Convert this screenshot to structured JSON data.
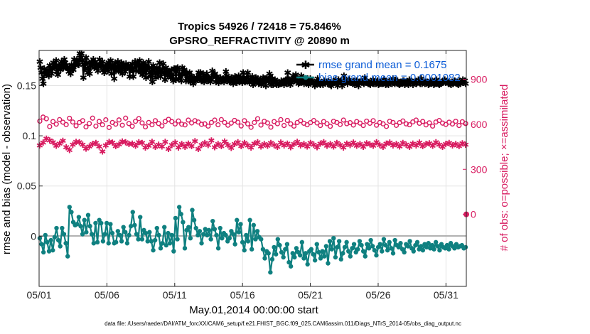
{
  "chart_data": {
    "type": "line",
    "title": "Tropics 54926 / 72418 = 75.846%",
    "subtitle": "GPSRO_REFRACTIVITY @ 20890 m",
    "xlabel": "May.01,2014 00:00:00 start",
    "ylabel": "rmse and bias (model - observation)",
    "y2label": "# of obs: o=possible; ×=assimilated",
    "xlim": [
      0,
      31.5
    ],
    "ylim": [
      -0.05,
      0.185
    ],
    "y2lim": [
      -480,
      1092
    ],
    "x_ticks": [
      0,
      5,
      10,
      15,
      20,
      25,
      30
    ],
    "x_tick_labels": [
      "05/01",
      "05/06",
      "05/11",
      "05/16",
      "05/21",
      "05/26",
      "05/31"
    ],
    "y_ticks": [
      0,
      0.05,
      0.1,
      0.15
    ],
    "y_tick_labels": [
      "0",
      "0.05",
      "0.1",
      "0.15"
    ],
    "y2_ticks": [
      0,
      300,
      600,
      900
    ],
    "y2_tick_labels": [
      "0",
      "300",
      "600",
      "900"
    ],
    "grid": true,
    "legend": [
      "rmse grand mean = 0.1675",
      "bias grand mean = 0.0001082"
    ],
    "legend_position": "top-right",
    "footer": "data file: /Users/raeder/DAI/ATM_forcXX/CAM6_setup/f.e21.FHIST_BGC.f09_025.CAM6assim.011/Diags_NTrS_2014-05/obs_diag_output.nc",
    "x_spacing": 0.25,
    "series": [
      {
        "name": "rmse",
        "color": "#000000",
        "marker": "*",
        "axis": "left",
        "values": [
          0.174,
          0.168,
          0.163,
          0.157,
          0.152,
          0.167,
          0.165,
          0.161,
          0.166,
          0.162,
          0.16,
          0.17,
          0.167,
          0.162,
          0.167,
          0.173,
          0.17,
          0.168,
          0.175,
          0.164,
          0.161,
          0.169,
          0.17,
          0.166,
          0.174,
          0.172,
          0.168,
          0.176,
          0.173,
          0.17,
          0.168,
          0.167,
          0.164,
          0.168,
          0.162,
          0.171,
          0.167,
          0.166,
          0.176,
          0.17,
          0.174,
          0.176,
          0.173,
          0.171,
          0.182,
          0.178,
          0.182,
          0.175,
          0.158,
          0.172,
          0.167,
          0.178,
          0.173,
          0.163,
          0.167,
          0.162,
          0.17,
          0.174,
          0.171,
          0.176,
          0.168,
          0.174,
          0.169,
          0.172,
          0.165,
          0.17,
          0.176,
          0.171,
          0.169,
          0.174,
          0.166,
          0.163,
          0.17,
          0.167,
          0.172,
          0.165,
          0.173,
          0.168,
          0.175,
          0.162,
          0.17,
          0.169,
          0.157,
          0.173,
          0.165,
          0.168,
          0.174,
          0.165,
          0.17,
          0.164,
          0.173,
          0.162,
          0.171,
          0.168,
          0.164,
          0.172,
          0.168,
          0.169,
          0.17,
          0.159,
          0.17,
          0.166,
          0.172,
          0.159,
          0.168,
          0.174,
          0.165,
          0.17,
          0.173,
          0.165,
          0.175,
          0.164,
          0.17,
          0.161,
          0.173,
          0.163,
          0.17,
          0.158,
          0.168,
          0.167,
          0.174,
          0.163,
          0.159,
          0.168,
          0.154,
          0.17,
          0.167,
          0.162,
          0.158,
          0.168,
          0.163,
          0.164,
          0.173,
          0.159,
          0.163,
          0.167,
          0.172,
          0.163,
          0.156,
          0.168,
          0.165,
          0.16,
          0.163,
          0.161,
          0.158,
          0.166,
          0.159,
          0.155,
          0.167,
          0.167,
          0.156,
          0.167,
          0.168,
          0.157,
          0.162,
          0.159,
          0.155,
          0.168,
          0.164,
          0.166,
          0.161,
          0.155,
          0.163,
          0.158,
          0.155,
          0.163,
          0.154,
          0.16,
          0.156,
          0.152,
          0.158,
          0.156,
          0.155,
          0.158,
          0.156,
          0.163,
          0.158,
          0.163,
          0.155,
          0.155,
          0.162,
          0.154,
          0.158,
          0.158,
          0.162,
          0.155,
          0.158,
          0.157,
          0.154,
          0.156,
          0.165,
          0.16,
          0.161,
          0.162,
          0.154,
          0.159,
          0.157,
          0.153,
          0.156,
          0.158,
          0.156,
          0.155,
          0.157,
          0.154,
          0.158,
          0.164,
          0.16,
          0.155,
          0.158,
          0.154,
          0.155,
          0.158,
          0.155,
          0.152,
          0.157,
          0.159,
          0.155,
          0.153,
          0.156,
          0.16,
          0.154,
          0.157,
          0.155,
          0.153,
          0.163,
          0.158,
          0.154,
          0.155,
          0.158,
          0.163,
          0.155,
          0.153,
          0.157,
          0.155,
          0.159,
          0.151,
          0.157,
          0.154,
          0.158,
          0.155,
          0.157,
          0.152,
          0.154,
          0.156,
          0.151,
          0.154,
          0.158,
          0.155,
          0.157,
          0.15,
          0.158,
          0.156,
          0.154,
          0.162,
          0.16,
          0.151,
          0.157,
          0.151,
          0.155,
          0.156,
          0.154,
          0.151,
          0.153,
          0.151,
          0.152,
          0.152,
          0.155,
          0.154,
          0.153,
          0.151,
          0.155,
          0.156,
          0.152,
          0.163,
          0.154,
          0.156,
          0.151,
          0.153,
          0.156,
          0.16,
          0.155,
          0.158,
          0.161,
          0.154,
          0.156,
          0.152,
          0.153,
          0.155,
          0.16,
          0.154,
          0.157,
          0.152,
          0.155,
          0.153,
          0.153,
          0.157,
          0.151,
          0.154,
          0.157,
          0.154,
          0.155,
          0.152,
          0.154,
          0.15,
          0.153,
          0.152,
          0.157,
          0.153,
          0.152,
          0.151,
          0.153,
          0.153,
          0.151,
          0.155,
          0.153,
          0.154,
          0.154,
          0.152,
          0.155,
          0.153,
          0.151,
          0.15,
          0.152,
          0.154,
          0.153,
          0.153,
          0.156,
          0.153,
          0.15,
          0.156,
          0.154,
          0.154,
          0.155,
          0.15,
          0.152,
          0.16,
          0.153,
          0.154,
          0.154,
          0.152,
          0.155,
          0.156,
          0.154,
          0.153,
          0.154,
          0.152,
          0.155,
          0.151,
          0.154,
          0.155,
          0.153,
          0.15,
          0.154,
          0.154,
          0.155,
          0.154,
          0.153,
          0.152,
          0.158,
          0.153,
          0.155,
          0.154,
          0.152,
          0.152,
          0.151,
          0.154,
          0.153,
          0.156,
          0.152,
          0.154,
          0.152,
          0.154,
          0.155,
          0.151,
          0.152,
          0.154,
          0.154,
          0.152,
          0.153,
          0.156,
          0.155,
          0.151,
          0.152,
          0.153,
          0.151,
          0.155,
          0.153,
          0.155,
          0.152,
          0.157,
          0.153,
          0.152,
          0.155,
          0.153,
          0.155,
          0.152,
          0.151,
          0.152,
          0.154,
          0.153,
          0.155,
          0.155,
          0.151,
          0.153,
          0.154,
          0.153,
          0.151,
          0.156,
          0.154,
          0.155,
          0.154,
          0.151,
          0.153,
          0.154,
          0.154,
          0.152,
          0.154,
          0.156,
          0.155,
          0.152,
          0.157,
          0.152,
          0.153,
          0.155,
          0.152,
          0.154,
          0.153,
          0.154,
          0.151,
          0.152,
          0.155,
          0.154,
          0.155,
          0.154,
          0.151,
          0.152,
          0.155,
          0.156,
          0.154,
          0.152,
          0.151,
          0.152,
          0.153,
          0.154,
          0.153,
          0.154,
          0.156,
          0.153,
          0.154,
          0.155,
          0.152,
          0.154,
          0.152,
          0.151,
          0.154,
          0.152,
          0.153,
          0.155,
          0.154,
          0.154,
          0.152,
          0.151,
          0.155,
          0.152,
          0.154,
          0.154,
          0.156,
          0.153,
          0.155,
          0.152
        ]
      },
      {
        "name": "bias",
        "color": "#0f8080",
        "marker": "o",
        "axis": "left",
        "values": [
          -0.002,
          -0.008,
          -0.016,
          0.001,
          -0.006,
          -0.015,
          -0.004,
          -0.014,
          -0.001,
          0.008,
          -0.004,
          -0.01,
          0.008,
          0.002,
          -0.007,
          -0.02,
          0.029,
          0.024,
          0.014,
          0.011,
          0.012,
          0.019,
          0.01,
          0.002,
          0.016,
          0.004,
          0.021,
          0.01,
          0.002,
          -0.007,
          0.013,
          -0.006,
          0.016,
          0.013,
          -0.005,
          0.002,
          0.013,
          -0.007,
          0.012,
          0.003,
          -0.007,
          -0.006,
          0.005,
          0.001,
          -0.005,
          0.009,
          0.004,
          -0.007,
          0.001,
          0.01,
          0.024,
          0.011,
          0.002,
          -0.003,
          0.019,
          -0.003,
          0.006,
          0.003,
          -0.005,
          0.004,
          -0.005,
          -0.014,
          -0.004,
          0.008,
          0.001,
          -0.012,
          -0.007,
          0.009,
          -0.009,
          0.003,
          -0.007,
          0.001,
          -0.015,
          0.018,
          -0.003,
          0.029,
          0.022,
          0.014,
          -0.012,
          0.006,
          0.009,
          -0.002,
          0.026,
          0.016,
          0.008,
          0.001,
          0.005,
          -0.007,
          0.002,
          0.007,
          0.001,
          0.006,
          -0.003,
          0.015,
          0.007,
          0.001,
          -0.012,
          0.008,
          -0.002,
          0.003,
          0.001,
          -0.005,
          -0.002,
          0.005,
          0.002,
          -0.008,
          0.016,
          0.004,
          0.012,
          -0.006,
          -0.014,
          0.001,
          -0.005,
          0.016,
          -0.013,
          0.011,
          -0.003,
          0.005,
          -0.001,
          -0.003,
          -0.013,
          -0.022,
          -0.015,
          -0.017,
          -0.036,
          -0.023,
          -0.011,
          -0.018,
          -0.003,
          -0.009,
          -0.016,
          -0.021,
          -0.013,
          -0.008,
          -0.026,
          -0.03,
          -0.017,
          -0.021,
          -0.012,
          -0.016,
          -0.019,
          -0.006,
          -0.022,
          -0.017,
          -0.028,
          -0.015,
          -0.013,
          -0.018,
          -0.024,
          -0.008,
          -0.016,
          -0.022,
          -0.015,
          -0.02,
          -0.01,
          -0.027,
          -0.005,
          -0.013,
          -0.002,
          -0.021,
          -0.011,
          -0.005,
          -0.023,
          -0.017,
          -0.011,
          -0.006,
          -0.015,
          -0.02,
          -0.012,
          -0.008,
          -0.016,
          -0.013,
          -0.005,
          -0.009,
          -0.015,
          -0.02,
          -0.008,
          -0.012,
          -0.004,
          -0.01,
          -0.014,
          -0.019,
          -0.011,
          -0.008,
          -0.015,
          -0.003,
          -0.009,
          -0.014,
          -0.006,
          -0.012,
          -0.017,
          -0.004,
          -0.009,
          -0.011,
          -0.007,
          -0.013,
          -0.016,
          -0.008,
          -0.01,
          -0.005,
          -0.012,
          -0.015,
          -0.009,
          -0.006,
          -0.013,
          -0.01,
          -0.014,
          -0.008,
          -0.011,
          -0.007,
          -0.012,
          -0.009,
          -0.013,
          -0.006,
          -0.01,
          -0.014,
          -0.008,
          -0.011,
          -0.012,
          -0.009,
          -0.013,
          -0.007,
          -0.01,
          -0.012,
          -0.008,
          -0.011,
          -0.01,
          -0.009,
          -0.012,
          -0.011
        ]
      },
      {
        "name": "possible obs",
        "color": "#d81b60",
        "marker": "o",
        "axis": "right",
        "values": [
          621,
          648,
          637,
          585,
          618,
          601,
          631,
          614,
          598,
          640,
          615,
          590,
          612,
          624,
          583,
          605,
          641,
          588,
          619,
          597,
          630,
          579,
          612,
          601,
          629,
          594,
          641,
          605,
          587,
          620,
          638,
          609,
          583,
          612,
          597,
          624,
          605,
          589,
          619,
          633,
          618,
          602,
          622,
          601,
          596,
          628,
          609,
          624,
          615,
          600,
          603,
          588,
          612,
          628,
          597,
          631,
          612,
          594,
          608,
          626,
          614,
          589,
          624,
          603,
          580,
          612,
          637,
          595,
          620,
          609,
          581,
          618,
          604,
          631,
          592,
          626,
          603,
          588,
          612,
          624,
          607,
          597,
          611,
          625,
          609,
          592,
          618,
          604,
          587,
          620,
          612,
          599,
          628,
          604,
          611,
          595,
          618,
          608,
          592,
          621,
          607,
          624,
          594,
          612,
          603,
          586,
          620,
          612,
          593,
          611,
          622,
          603,
          597,
          616,
          628,
          607,
          619,
          596,
          610,
          588,
          615,
          625,
          608,
          599,
          614,
          602,
          620,
          592,
          617,
          605
        ]
      },
      {
        "name": "assimilated obs",
        "color": "#d81b60",
        "marker": "x",
        "axis": "right",
        "values": [
          458,
          477,
          503,
          491,
          479,
          455,
          470,
          488,
          446,
          426,
          462,
          482,
          480,
          463,
          436,
          450,
          467,
          475,
          451,
          418,
          457,
          482,
          477,
          452,
          464,
          483,
          480,
          467,
          469,
          456,
          480,
          474,
          444,
          454,
          482,
          448,
          463,
          451,
          481,
          433,
          459,
          476,
          444,
          467,
          448,
          470,
          452,
          487,
          434,
          459,
          475,
          461,
          490,
          445,
          468,
          453,
          483,
          460,
          441,
          466,
          478,
          452,
          474,
          457,
          443,
          469,
          480,
          451,
          467,
          456,
          473,
          461,
          448,
          476,
          458,
          470,
          446,
          466,
          482,
          457,
          468,
          450,
          475,
          462,
          445,
          470,
          480,
          456,
          467,
          451,
          474,
          459,
          443,
          469,
          461,
          477,
          454,
          467,
          448,
          472,
          465,
          456,
          479,
          461,
          449,
          470,
          476,
          457,
          466,
          451,
          473,
          462,
          447,
          469,
          458,
          476,
          452,
          466,
          471,
          455,
          480,
          463,
          449,
          468,
          474,
          457,
          466,
          452,
          471,
          462
        ]
      }
    ]
  }
}
